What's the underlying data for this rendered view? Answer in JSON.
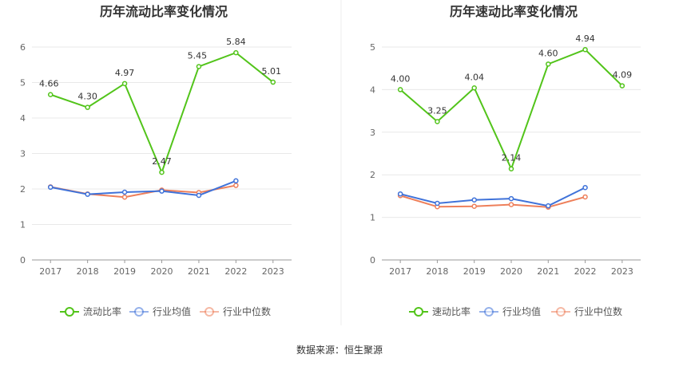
{
  "source_label": "数据来源：恒生聚源",
  "chart_data": [
    {
      "type": "line",
      "title": "历年流动比率变化情况",
      "categories": [
        "2017",
        "2018",
        "2019",
        "2020",
        "2021",
        "2022",
        "2023"
      ],
      "ylim": [
        0,
        6
      ],
      "yticks": [
        "0",
        "1",
        "2",
        "3",
        "4",
        "5",
        "6"
      ],
      "grid": true,
      "legend": "bottom",
      "series": [
        {
          "name": "流动比率",
          "color": "#52c41a",
          "values": [
            4.66,
            4.3,
            4.97,
            2.47,
            5.45,
            5.84,
            5.01
          ],
          "labels": [
            "4.66",
            "4.30",
            "4.97",
            "2.47",
            "5.45",
            "5.84",
            "5.01"
          ]
        },
        {
          "name": "行业均值",
          "color": "#3f72d9",
          "values": [
            2.05,
            1.85,
            1.91,
            1.94,
            1.82,
            2.23,
            null
          ]
        },
        {
          "name": "行业中位数",
          "color": "#ee7f5a",
          "values": [
            2.06,
            1.86,
            1.77,
            1.97,
            1.9,
            2.1,
            null
          ]
        }
      ]
    },
    {
      "type": "line",
      "title": "历年速动比率变化情况",
      "categories": [
        "2017",
        "2018",
        "2019",
        "2020",
        "2021",
        "2022",
        "2023"
      ],
      "ylim": [
        0,
        5
      ],
      "yticks": [
        "0",
        "1",
        "2",
        "3",
        "4",
        "5"
      ],
      "grid": true,
      "legend": "bottom",
      "series": [
        {
          "name": "速动比率",
          "color": "#52c41a",
          "values": [
            4.0,
            3.25,
            4.04,
            2.14,
            4.6,
            4.94,
            4.09
          ],
          "labels": [
            "4.00",
            "3.25",
            "4.04",
            "2.14",
            "4.60",
            "4.94",
            "4.09"
          ]
        },
        {
          "name": "行业均值",
          "color": "#3f72d9",
          "values": [
            1.55,
            1.33,
            1.41,
            1.44,
            1.27,
            1.7,
            null
          ]
        },
        {
          "name": "行业中位数",
          "color": "#ee7f5a",
          "values": [
            1.51,
            1.25,
            1.26,
            1.3,
            1.24,
            1.48,
            null
          ]
        }
      ]
    }
  ]
}
